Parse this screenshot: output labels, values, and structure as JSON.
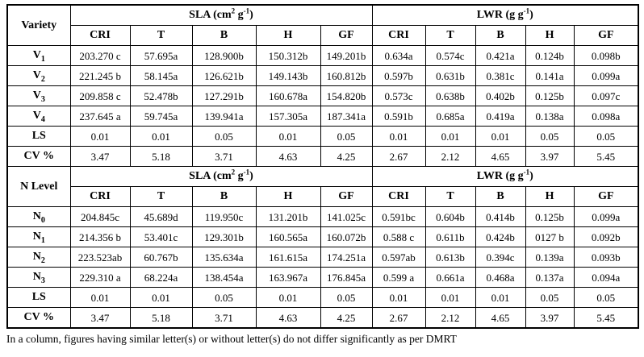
{
  "page": {
    "background": "#ffffff",
    "text_color": "#000000",
    "border_color": "#000000"
  },
  "table": {
    "sub_headers": [
      "CRI",
      "T",
      "B",
      "H",
      "GF",
      "CRI",
      "T",
      "B",
      "H",
      "GF"
    ],
    "sections": [
      {
        "row_header": "Variety",
        "group_headers": [
          {
            "name": "sla-header",
            "parts": [
              {
                "t": "SLA (cm"
              },
              {
                "t": "2",
                "sup": true
              },
              {
                "t": " g"
              },
              {
                "t": "-1",
                "sup": true
              },
              {
                "t": ")"
              }
            ]
          },
          {
            "name": "lwr-header",
            "parts": [
              {
                "t": "LWR (g g"
              },
              {
                "t": "-1",
                "sup": true
              },
              {
                "t": ")"
              }
            ]
          }
        ],
        "rows": [
          {
            "label": {
              "base": "V",
              "sub": "1"
            },
            "cells": [
              "203.270 c",
              "57.695a",
              "128.900b",
              "150.312b",
              "149.201b",
              "0.634a",
              "0.574c",
              "0.421a",
              "0.124b",
              "0.098b"
            ]
          },
          {
            "label": {
              "base": "V",
              "sub": "2"
            },
            "cells": [
              "221.245 b",
              "58.145a",
              "126.621b",
              "149.143b",
              "160.812b",
              "0.597b",
              "0.631b",
              "0.381c",
              "0.141a",
              "0.099a"
            ]
          },
          {
            "label": {
              "base": "V",
              "sub": "3"
            },
            "cells": [
              "209.858 c",
              "52.478b",
              "127.291b",
              "160.678a",
              "154.820b",
              "0.573c",
              "0.638b",
              "0.402b",
              "0.125b",
              "0.097c"
            ]
          },
          {
            "label": {
              "base": "V",
              "sub": "4"
            },
            "cells": [
              "237.645 a",
              "59.745a",
              "139.941a",
              "157.305a",
              "187.341a",
              "0.591b",
              "0.685a",
              "0.419a",
              "0.138a",
              "0.098a"
            ]
          },
          {
            "label": {
              "base": "LS"
            },
            "cells": [
              "0.01",
              "0.01",
              "0.05",
              "0.01",
              "0.05",
              "0.01",
              "0.01",
              "0.01",
              "0.05",
              "0.05"
            ]
          },
          {
            "label": {
              "base": "CV %"
            },
            "cells": [
              "3.47",
              "5.18",
              "3.71",
              "4.63",
              "4.25",
              "2.67",
              "2.12",
              "4.65",
              "3.97",
              "5.45"
            ]
          }
        ]
      },
      {
        "row_header": "N Level",
        "group_headers": [
          {
            "name": "sla-header",
            "parts": [
              {
                "t": "SLA (cm"
              },
              {
                "t": "2",
                "sup": true
              },
              {
                "t": " g"
              },
              {
                "t": "-1",
                "sup": true
              },
              {
                "t": ")"
              }
            ]
          },
          {
            "name": "lwr-header",
            "parts": [
              {
                "t": "LWR (g g"
              },
              {
                "t": "-1",
                "sup": true
              },
              {
                "t": ")"
              }
            ]
          }
        ],
        "rows": [
          {
            "label": {
              "base": "N",
              "sub": "0"
            },
            "cells": [
              "204.845c",
              "45.689d",
              "119.950c",
              "131.201b",
              "141.025c",
              "0.591bc",
              "0.604b",
              "0.414b",
              "0.125b",
              "0.099a"
            ]
          },
          {
            "label": {
              "base": "N",
              "sub": "1"
            },
            "cells": [
              "214.356 b",
              "53.401c",
              "129.301b",
              "160.565a",
              "160.072b",
              "0.588 c",
              "0.611b",
              "0.424b",
              "0127 b",
              "0.092b"
            ]
          },
          {
            "label": {
              "base": "N",
              "sub": "2"
            },
            "cells": [
              "223.523ab",
              "60.767b",
              "135.634a",
              "161.615a",
              "174.251a",
              "0.597ab",
              "0.613b",
              "0.394c",
              "0.139a",
              "0.093b"
            ]
          },
          {
            "label": {
              "base": "N",
              "sub": "3"
            },
            "cells": [
              "229.310 a",
              "68.224a",
              "138.454a",
              "163.967a",
              "176.845a",
              "0.599 a",
              "0.661a",
              "0.468a",
              "0.137a",
              "0.094a"
            ]
          },
          {
            "label": {
              "base": "LS"
            },
            "cells": [
              "0.01",
              "0.01",
              "0.05",
              "0.01",
              "0.05",
              "0.01",
              "0.01",
              "0.01",
              "0.05",
              "0.05"
            ]
          },
          {
            "label": {
              "base": "CV %"
            },
            "cells": [
              "3.47",
              "5.18",
              "3.71",
              "4.63",
              "4.25",
              "2.67",
              "2.12",
              "4.65",
              "3.97",
              "5.45"
            ]
          }
        ]
      }
    ]
  },
  "footnote": "In a column, figures having similar letter(s) or without letter(s) do not differ significantly as per DMRT"
}
